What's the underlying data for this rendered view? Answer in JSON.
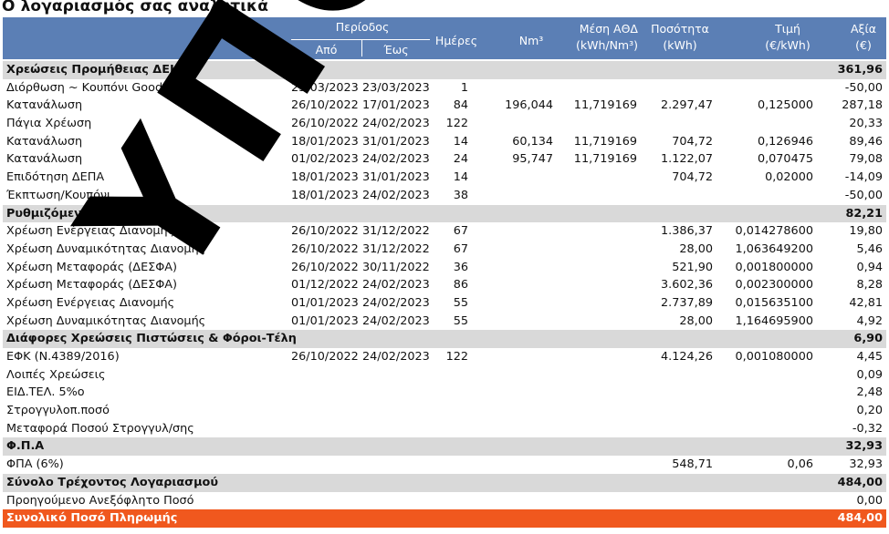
{
  "title": "Ο λογαριασμός σας αναλυτικά",
  "header": {
    "period": "Περίοδος",
    "from": "Από",
    "to": "Έως",
    "days": "Ημέρες",
    "nm3": "Nm³",
    "ath_line1": "Μέση ΑΘΔ",
    "ath_line2": "(kWh/Nm³)",
    "qty_line1": "Ποσότητα",
    "qty_line2": "(kWh)",
    "price_line1": "Τιμή",
    "price_line2": "(€/kWh)",
    "value_line1": "Αξία",
    "value_line2": "(€)"
  },
  "rows": [
    {
      "type": "section",
      "desc": "Χρεώσεις Προμήθειας ΔΕΗ",
      "val": "361,96"
    },
    {
      "type": "item",
      "desc": "Διόρθωση ~ Κουπόνι Goodwill",
      "from": "23/03/2023",
      "to": "23/03/2023",
      "days": "1",
      "val": "-50,00"
    },
    {
      "type": "item",
      "desc": "Κατανάλωση",
      "from": "26/10/2022",
      "to": "17/01/2023",
      "days": "84",
      "nm3": "196,044",
      "ath": "11,719169",
      "qty": "2.297,47",
      "price": "0,125000",
      "val": "287,18"
    },
    {
      "type": "item",
      "desc": "Πάγια Χρέωση",
      "from": "26/10/2022",
      "to": "24/02/2023",
      "days": "122",
      "val": "20,33"
    },
    {
      "type": "item",
      "desc": "Κατανάλωση",
      "from": "18/01/2023",
      "to": "31/01/2023",
      "days": "14",
      "nm3": "60,134",
      "ath": "11,719169",
      "qty": "704,72",
      "price": "0,126946",
      "val": "89,46"
    },
    {
      "type": "item",
      "desc": "Κατανάλωση",
      "from": "01/02/2023",
      "to": "24/02/2023",
      "days": "24",
      "nm3": "95,747",
      "ath": "11,719169",
      "qty": "1.122,07",
      "price": "0,070475",
      "val": "79,08"
    },
    {
      "type": "item",
      "desc": "Επιδότηση ΔΕΠΑ",
      "from": "18/01/2023",
      "to": "31/01/2023",
      "days": "14",
      "qty": "704,72",
      "price": "0,02000",
      "val": "-14,09"
    },
    {
      "type": "item",
      "desc": "Έκπτωση/Κουπόνι",
      "from": "18/01/2023",
      "to": "24/02/2023",
      "days": "38",
      "val": "-50,00"
    },
    {
      "type": "section",
      "desc": "Ρυθμιζόμενες Χρεώσεις",
      "val": "82,21"
    },
    {
      "type": "item",
      "desc": "Χρέωση Ενέργειας Διανομής",
      "from": "26/10/2022",
      "to": "31/12/2022",
      "days": "67",
      "qty": "1.386,37",
      "price": "0,014278600",
      "val": "19,80"
    },
    {
      "type": "item",
      "desc": "Χρέωση Δυναμικότητας Διανομής",
      "from": "26/10/2022",
      "to": "31/12/2022",
      "days": "67",
      "qty": "28,00",
      "price": "1,063649200",
      "val": "5,46"
    },
    {
      "type": "item",
      "desc": "Χρέωση Μεταφοράς (ΔΕΣΦΑ)",
      "from": "26/10/2022",
      "to": "30/11/2022",
      "days": "36",
      "qty": "521,90",
      "price": "0,001800000",
      "val": "0,94"
    },
    {
      "type": "item",
      "desc": "Χρέωση Μεταφοράς (ΔΕΣΦΑ)",
      "from": "01/12/2022",
      "to": "24/02/2023",
      "days": "86",
      "qty": "3.602,36",
      "price": "0,002300000",
      "val": "8,28"
    },
    {
      "type": "item",
      "desc": "Χρέωση Ενέργειας Διανομής",
      "from": "01/01/2023",
      "to": "24/02/2023",
      "days": "55",
      "qty": "2.737,89",
      "price": "0,015635100",
      "val": "42,81"
    },
    {
      "type": "item",
      "desc": "Χρέωση Δυναμικότητας Διανομής",
      "from": "01/01/2023",
      "to": "24/02/2023",
      "days": "55",
      "qty": "28,00",
      "price": "1,164695900",
      "val": "4,92"
    },
    {
      "type": "section",
      "desc": "Διάφορες Χρεώσεις Πιστώσεις & Φόροι-Τέλη",
      "val": "6,90"
    },
    {
      "type": "item",
      "desc": "ΕΦΚ (Ν.4389/2016)",
      "from": "26/10/2022",
      "to": "24/02/2023",
      "days": "122",
      "qty": "4.124,26",
      "price": "0,001080000",
      "val": "4,45"
    },
    {
      "type": "item",
      "desc": "Λοιπές Χρεώσεις",
      "val": "0,09"
    },
    {
      "type": "item",
      "desc": "ΕΙΔ.ΤΕΛ. 5%ο",
      "val": "2,48"
    },
    {
      "type": "item",
      "desc": "Στρογγυλοπ.ποσό",
      "val": "0,20"
    },
    {
      "type": "item",
      "desc": "Μεταφορά Ποσού Στρογγυλ/σης",
      "val": "-0,32"
    },
    {
      "type": "section",
      "desc": "Φ.Π.Α",
      "val": "32,93"
    },
    {
      "type": "item",
      "desc": "ΦΠΑ (6%)",
      "qty": "548,71",
      "price": "0,06",
      "val": "32,93"
    },
    {
      "type": "section",
      "desc": "Σύνολο Τρέχοντος Λογαριασμού",
      "val": "484,00"
    },
    {
      "type": "item",
      "desc": "Προηγούμενο Ανεξόφλητο Ποσό",
      "val": "0,00"
    },
    {
      "type": "total",
      "desc": "Συνολικό Ποσό Πληρωμής",
      "val": "484,00"
    }
  ],
  "watermark": "ΥΠΟΓΡΑΦΟ",
  "colors": {
    "header_bg": "#5b7fb5",
    "section_bg": "#d9d9d9",
    "total_bg": "#f0581e"
  }
}
